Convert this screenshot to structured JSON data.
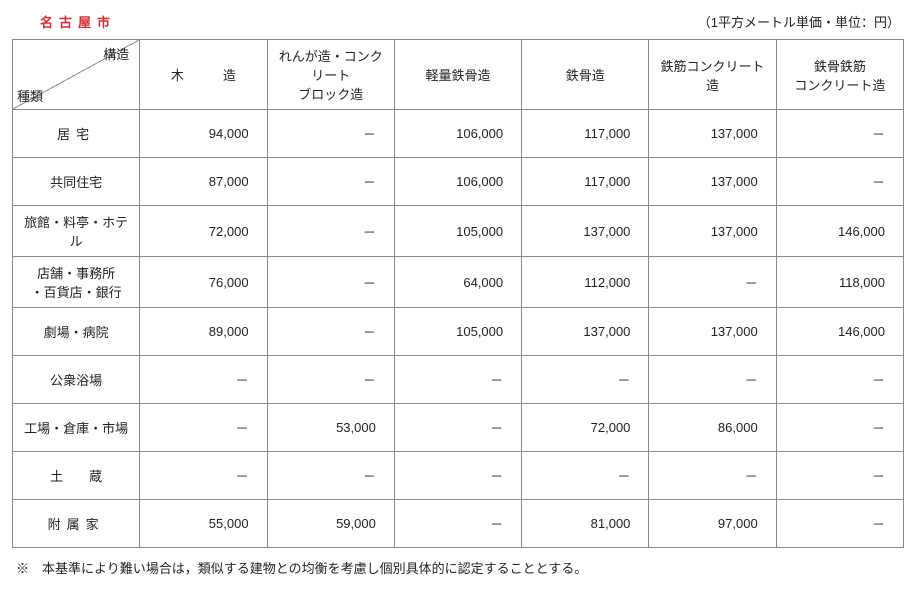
{
  "header": {
    "city": "名古屋市",
    "unit_note": "（1平方メートル単価・単位：円）"
  },
  "corner": {
    "top": "構造",
    "bottom": "種類"
  },
  "columns": [
    {
      "label": "木　　　造",
      "key": "c1"
    },
    {
      "label": "れんが造・コンクリート\nブロック造",
      "key": "c2"
    },
    {
      "label": "軽量鉄骨造",
      "key": "c3"
    },
    {
      "label": "鉄骨造",
      "key": "c4"
    },
    {
      "label": "鉄筋コンクリート造",
      "key": "c5"
    },
    {
      "label": "鉄骨鉄筋\nコンクリート造",
      "key": "c6"
    }
  ],
  "rows": [
    {
      "label": "居宅",
      "label_class": "spaced-3",
      "cells": [
        "94,000",
        "－",
        "106,000",
        "117,000",
        "137,000",
        "－"
      ]
    },
    {
      "label": "共同住宅",
      "cells": [
        "87,000",
        "－",
        "106,000",
        "117,000",
        "137,000",
        "－"
      ]
    },
    {
      "label": "旅館・料亭・ホテル",
      "cells": [
        "72,000",
        "－",
        "105,000",
        "137,000",
        "137,000",
        "146,000"
      ]
    },
    {
      "label": "店舗・事務所\n・百貨店・銀行",
      "cells": [
        "76,000",
        "－",
        "64,000",
        "112,000",
        "－",
        "118,000"
      ]
    },
    {
      "label": "劇場・病院",
      "cells": [
        "89,000",
        "－",
        "105,000",
        "137,000",
        "137,000",
        "146,000"
      ]
    },
    {
      "label": "公衆浴場",
      "cells": [
        "－",
        "－",
        "－",
        "－",
        "－",
        "－"
      ]
    },
    {
      "label": "工場・倉庫・市場",
      "cells": [
        "－",
        "53,000",
        "－",
        "72,000",
        "86,000",
        "－"
      ]
    },
    {
      "label": "土　　蔵",
      "cells": [
        "－",
        "－",
        "－",
        "－",
        "－",
        "－"
      ]
    },
    {
      "label": "附属家",
      "label_class": "spaced-3",
      "cells": [
        "55,000",
        "59,000",
        "－",
        "81,000",
        "97,000",
        "－"
      ]
    }
  ],
  "footnote": "※　本基準により難い場合は，類似する建物との均衡を考慮し個別具体的に認定することとする。"
}
